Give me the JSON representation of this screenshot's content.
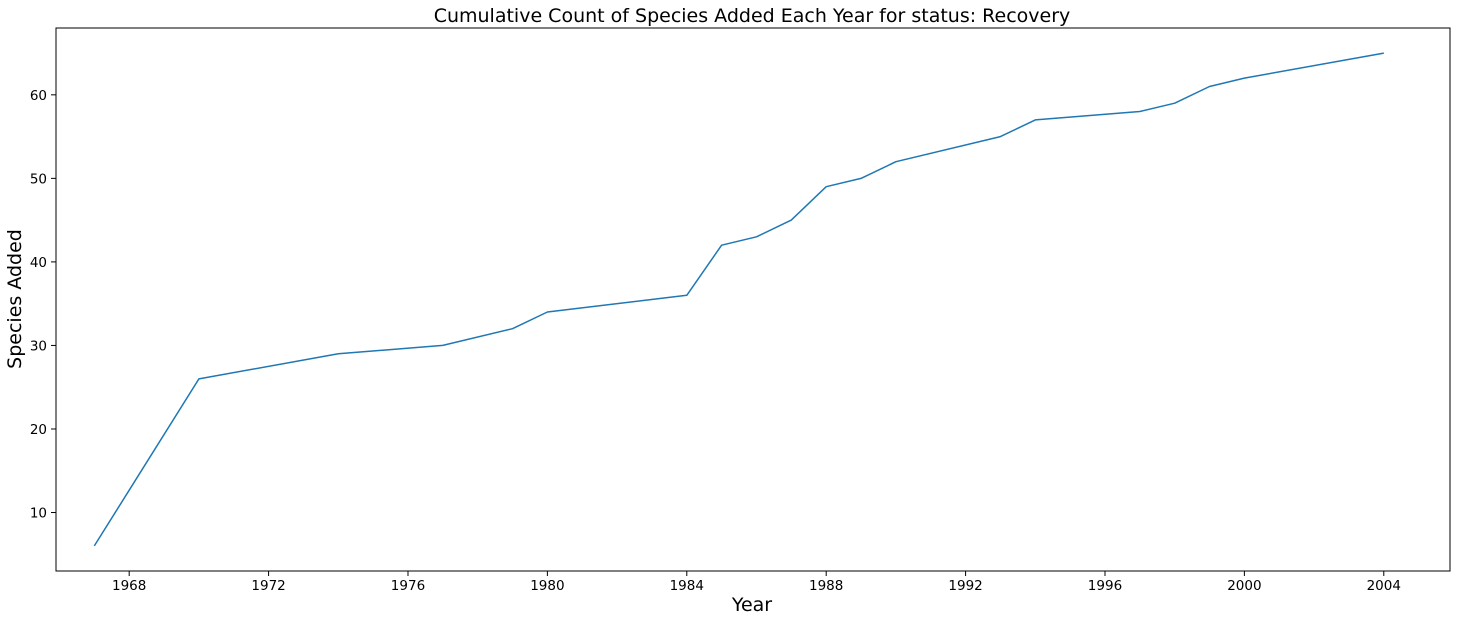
{
  "chart_data": {
    "type": "line",
    "title": "Cumulative Count of Species Added Each Year for status: Recovery",
    "xlabel": "Year",
    "ylabel": "Species Added",
    "xlim": [
      1965.9,
      2005.9
    ],
    "ylim": [
      3,
      68
    ],
    "xticks": [
      1968,
      1972,
      1976,
      1980,
      1984,
      1988,
      1992,
      1996,
      2000,
      2004
    ],
    "yticks": [
      10,
      20,
      30,
      40,
      50,
      60
    ],
    "grid": false,
    "legend": "none",
    "series": [
      {
        "color": "#1f77b4",
        "x": [
          1967,
          1970,
          1974,
          1977,
          1979,
          1980,
          1984,
          1985,
          1986,
          1987,
          1988,
          1989,
          1990,
          1993,
          1994,
          1997,
          1998,
          1999,
          2000,
          2004
        ],
        "y": [
          6,
          26,
          29,
          30,
          32,
          34,
          36,
          42,
          43,
          45,
          49,
          50,
          52,
          55,
          57,
          58,
          59,
          61,
          62,
          65
        ]
      }
    ]
  }
}
